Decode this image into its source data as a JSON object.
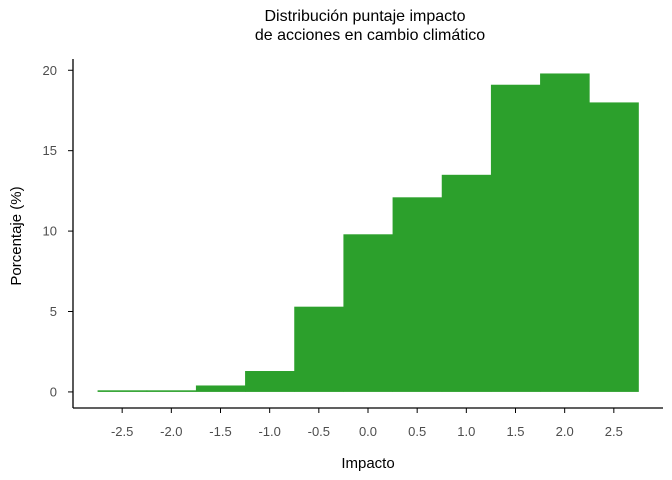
{
  "chart_data": {
    "type": "bar",
    "title": [
      "Distribución puntaje impacto",
      "de acciones en cambio climático"
    ],
    "xlabel": "Impacto",
    "ylabel": "Porcentaje (%)",
    "bin_width": 0.5,
    "bins": [
      {
        "center": -2.5,
        "value": 0.1
      },
      {
        "center": -2.0,
        "value": 0.1
      },
      {
        "center": -1.5,
        "value": 0.4
      },
      {
        "center": -1.0,
        "value": 1.3
      },
      {
        "center": -0.5,
        "value": 5.3
      },
      {
        "center": 0.0,
        "value": 9.8
      },
      {
        "center": 0.5,
        "value": 12.1
      },
      {
        "center": 1.0,
        "value": 13.5
      },
      {
        "center": 1.5,
        "value": 19.1
      },
      {
        "center": 2.0,
        "value": 19.8
      },
      {
        "center": 2.5,
        "value": 18.0
      }
    ],
    "xticks": [
      "-2.5",
      "-2.0",
      "-1.5",
      "-1.0",
      "-0.5",
      "0.0",
      "0.5",
      "1.0",
      "1.5",
      "2.0",
      "2.5"
    ],
    "yticks": [
      "0",
      "5",
      "10",
      "15",
      "20"
    ],
    "xlim": [
      -3.0,
      3.0
    ],
    "ylim": [
      -1.0,
      20.7
    ],
    "bar_color": "#2ca02c",
    "axis_color": "#000000",
    "grid": false,
    "legend": "none"
  }
}
